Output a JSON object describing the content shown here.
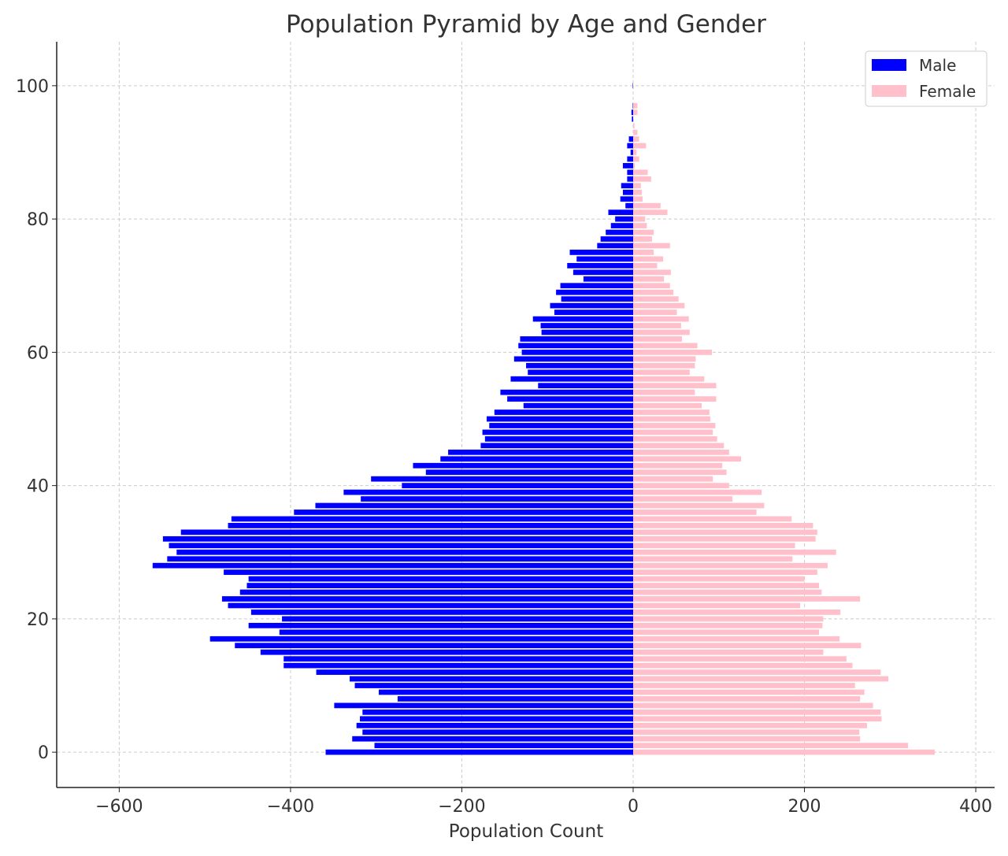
{
  "chart_data": {
    "type": "bar",
    "orientation": "horizontal",
    "title": "Population Pyramid by Age and Gender",
    "xlabel": "Population Count",
    "ylabel": "",
    "xlim": [
      -673,
      422
    ],
    "ylim": [
      -5.3,
      106.6
    ],
    "xticks": [
      -600,
      -400,
      -200,
      0,
      200,
      400
    ],
    "xtick_labels": [
      "−600",
      "−400",
      "−200",
      "0",
      "200",
      "400"
    ],
    "yticks": [
      0,
      20,
      40,
      60,
      80,
      100
    ],
    "ytick_labels": [
      "0",
      "20",
      "40",
      "60",
      "80",
      "100"
    ],
    "grid": true,
    "legend_position": "top-right",
    "categories": [
      0,
      1,
      2,
      3,
      4,
      5,
      6,
      7,
      8,
      9,
      10,
      11,
      12,
      13,
      14,
      15,
      16,
      17,
      18,
      19,
      20,
      21,
      22,
      23,
      24,
      25,
      26,
      27,
      28,
      29,
      30,
      31,
      32,
      33,
      34,
      35,
      36,
      37,
      38,
      39,
      40,
      41,
      42,
      43,
      44,
      45,
      46,
      47,
      48,
      49,
      50,
      51,
      52,
      53,
      54,
      55,
      56,
      57,
      58,
      59,
      60,
      61,
      62,
      63,
      64,
      65,
      66,
      67,
      68,
      69,
      70,
      71,
      72,
      73,
      74,
      75,
      76,
      77,
      78,
      79,
      80,
      81,
      82,
      83,
      84,
      85,
      86,
      87,
      88,
      89,
      90,
      91,
      92,
      93,
      94,
      95,
      96,
      97,
      98,
      99,
      100
    ],
    "series": [
      {
        "name": "Male",
        "color": "#0000ff",
        "values": [
          -359,
          -302,
          -328,
          -316,
          -323,
          -319,
          -316,
          -349,
          -275,
          -297,
          -325,
          -331,
          -370,
          -408,
          -408,
          -435,
          -465,
          -494,
          -413,
          -449,
          -410,
          -446,
          -473,
          -480,
          -459,
          -451,
          -449,
          -478,
          -561,
          -544,
          -533,
          -542,
          -549,
          -528,
          -473,
          -469,
          -396,
          -371,
          -318,
          -338,
          -270,
          -306,
          -242,
          -257,
          -225,
          -216,
          -178,
          -173,
          -176,
          -168,
          -171,
          -162,
          -128,
          -147,
          -155,
          -111,
          -143,
          -123,
          -125,
          -139,
          -130,
          -134,
          -132,
          -107,
          -108,
          -117,
          -92,
          -97,
          -84,
          -90,
          -85,
          -58,
          -70,
          -77,
          -66,
          -74,
          -42,
          -38,
          -32,
          -26,
          -21,
          -29,
          -9,
          -15,
          -12,
          -14,
          -7,
          -7,
          -12,
          -7,
          -3,
          -7,
          -5,
          0,
          0,
          -1.5,
          -2,
          -0.5,
          0,
          0,
          -0.5
        ]
      },
      {
        "name": "Female",
        "color": "#ffc0cb",
        "values": [
          352,
          321,
          265,
          264,
          273,
          290,
          289,
          280,
          265,
          270,
          259,
          298,
          289,
          256,
          249,
          222,
          266,
          241,
          217,
          221,
          222,
          242,
          195,
          265,
          220,
          217,
          200,
          215,
          227,
          186,
          237,
          189,
          213,
          215,
          210,
          185,
          144,
          153,
          116,
          150,
          112,
          93,
          109,
          104,
          126,
          112,
          106,
          98,
          93,
          96,
          90,
          89,
          80,
          97,
          72,
          97,
          83,
          66,
          72,
          73,
          92,
          75,
          57,
          66,
          56,
          65,
          51,
          60,
          53,
          47,
          43,
          36,
          44,
          28,
          35,
          24,
          43,
          22,
          24,
          16,
          14,
          40,
          32,
          11,
          10,
          9,
          21,
          17,
          2,
          7,
          4,
          15,
          7,
          5,
          1.5,
          0,
          5,
          5,
          0,
          0,
          0
        ]
      }
    ]
  }
}
